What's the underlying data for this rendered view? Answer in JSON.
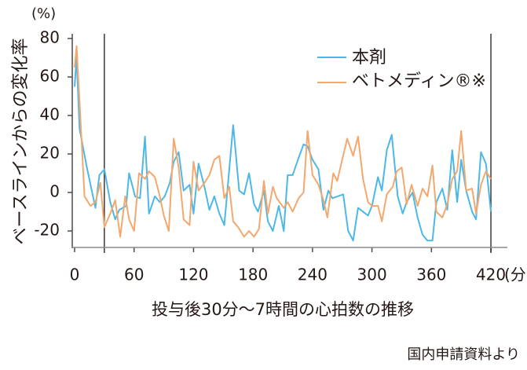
{
  "chart_data": {
    "type": "line",
    "title": "",
    "ylabel": "ベースラインからの変化率",
    "yunit": "(%)",
    "xunit": "(分)",
    "xlabel": "投与後30分〜7時間の心拍数の推移",
    "source_note": "国内申請資料より",
    "xlim": [
      -3,
      440
    ],
    "ylim": [
      -28,
      82
    ],
    "xticks": [
      0,
      60,
      120,
      180,
      240,
      300,
      360,
      420
    ],
    "yticks": [
      -20,
      0,
      20,
      40,
      60,
      80
    ],
    "reference_lines_x": [
      30,
      420
    ],
    "grid": false,
    "legend_position": "top-right",
    "series": [
      {
        "name": "本剤",
        "color": "#4db8e8",
        "x": [
          0,
          2,
          5,
          12,
          21,
          25,
          30,
          36,
          41,
          45,
          52,
          55,
          61,
          66,
          71,
          75,
          81,
          86,
          91,
          96,
          100,
          105,
          110,
          116,
          120,
          125,
          131,
          136,
          141,
          146,
          151,
          160,
          166,
          171,
          176,
          181,
          185,
          191,
          195,
          200,
          206,
          211,
          215,
          220,
          226,
          231,
          235,
          240,
          246,
          251,
          256,
          260,
          271,
          276,
          281,
          286,
          296,
          300,
          306,
          310,
          315,
          320,
          326,
          331,
          335,
          341,
          346,
          351,
          356,
          361,
          365,
          371,
          376,
          381,
          386,
          390,
          395,
          401,
          405,
          410,
          415,
          420
        ],
        "y": [
          55,
          70,
          33,
          14,
          -8,
          9,
          12,
          -5,
          -14,
          -9,
          -7,
          10,
          -2,
          -3,
          29,
          -11,
          -2,
          -5,
          -2,
          5,
          16,
          21,
          1,
          4,
          -11,
          15,
          3,
          -9,
          -2,
          -11,
          -17,
          35,
          1,
          -1,
          10,
          -6,
          -10,
          1,
          -15,
          -20,
          -7,
          -20,
          9,
          9,
          18,
          25,
          24,
          17,
          12,
          -9,
          1,
          -3,
          -1,
          -20,
          -25,
          -8,
          -12,
          -7,
          8,
          1,
          22,
          30,
          -2,
          -11,
          -5,
          0,
          -13,
          -22,
          -25,
          -25,
          -5,
          2,
          -9,
          22,
          -5,
          17,
          1,
          -10,
          -14,
          21,
          15,
          -10
        ]
      },
      {
        "name": "ベトメディン®※",
        "color": "#f2a86e",
        "x": [
          0,
          2,
          5,
          10,
          16,
          21,
          26,
          30,
          36,
          41,
          46,
          51,
          55,
          60,
          65,
          71,
          75,
          81,
          86,
          90,
          95,
          100,
          105,
          110,
          116,
          120,
          125,
          131,
          136,
          141,
          146,
          151,
          156,
          160,
          165,
          171,
          176,
          181,
          186,
          191,
          195,
          200,
          204,
          211,
          215,
          220,
          226,
          231,
          235,
          240,
          246,
          251,
          255,
          261,
          265,
          270,
          275,
          281,
          286,
          291,
          296,
          300,
          306,
          310,
          315,
          321,
          325,
          330,
          335,
          340,
          346,
          351,
          356,
          361,
          365,
          371,
          376,
          381,
          386,
          390,
          395,
          401,
          405,
          410,
          415,
          420
        ],
        "y": [
          65,
          76,
          47,
          -2,
          -7,
          -5,
          5,
          -18,
          -11,
          -4,
          -23,
          -2,
          -14,
          -20,
          10,
          7,
          11,
          8,
          -2,
          -12,
          -20,
          28,
          13,
          -14,
          -17,
          16,
          1,
          5,
          9,
          17,
          19,
          -3,
          3,
          -15,
          -18,
          -23,
          -20,
          -23,
          -19,
          6,
          -11,
          3,
          -3,
          -8,
          -5,
          -10,
          -3,
          0,
          32,
          9,
          4,
          -4,
          -13,
          10,
          6,
          17,
          28,
          19,
          29,
          7,
          -5,
          -7,
          -7,
          -15,
          -1,
          3,
          11,
          13,
          -6,
          4,
          -7,
          2,
          -2,
          14,
          -10,
          -13,
          -6,
          7,
          11,
          32,
          1,
          2,
          -11,
          4,
          11,
          7
        ]
      }
    ]
  }
}
